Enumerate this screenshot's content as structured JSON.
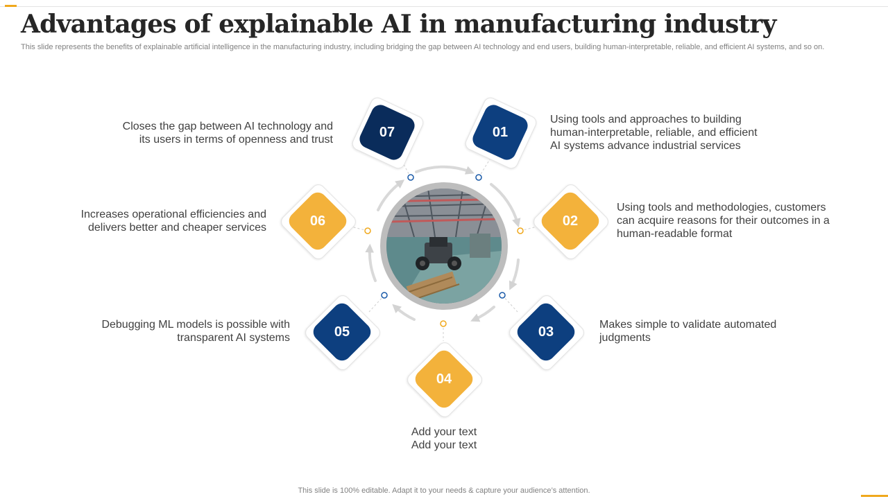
{
  "slide": {
    "title": "Advantages of explainable AI in manufacturing industry",
    "subtitle": "This slide represents the benefits of explainable artificial intelligence in the manufacturing industry, including bridging the gap between AI technology and end users, building human-interpretable, reliable, and efficient AI  systems, and so on.",
    "footer": "This slide is 100% editable. Adapt it to your needs & capture your audience’s attention."
  },
  "colors": {
    "navy": "#0d3f7f",
    "dark_navy": "#0a2c5b",
    "gold": "#f3b23b",
    "accent": "#f0a81c"
  },
  "center_image": {
    "icon": "factory-tractor-photo"
  },
  "items": [
    {
      "number": "01",
      "color": "navy",
      "lines": [
        "Using tools and approaches to building",
        "human-interpretable,  reliable, and efficient",
        "AI systems advance industrial services"
      ]
    },
    {
      "number": "02",
      "color": "gold",
      "lines": [
        "Using tools and methodologies, customers",
        "can acquire reasons for their outcomes in a",
        "human-readable format"
      ]
    },
    {
      "number": "03",
      "color": "navy",
      "lines": [
        "Makes simple to validate automated",
        "judgments"
      ]
    },
    {
      "number": "04",
      "color": "gold",
      "lines": [
        "Add your text",
        "Add your text"
      ]
    },
    {
      "number": "05",
      "color": "navy",
      "lines": [
        "Debugging ML models is possible with",
        "transparent AI systems"
      ]
    },
    {
      "number": "06",
      "color": "gold",
      "lines": [
        "Increases operational efficiencies and",
        "delivers better and cheaper services"
      ]
    },
    {
      "number": "07",
      "color": "dark_navy",
      "lines": [
        "Closes the gap between AI technology  and",
        "its users in terms of openness and trust"
      ]
    }
  ]
}
